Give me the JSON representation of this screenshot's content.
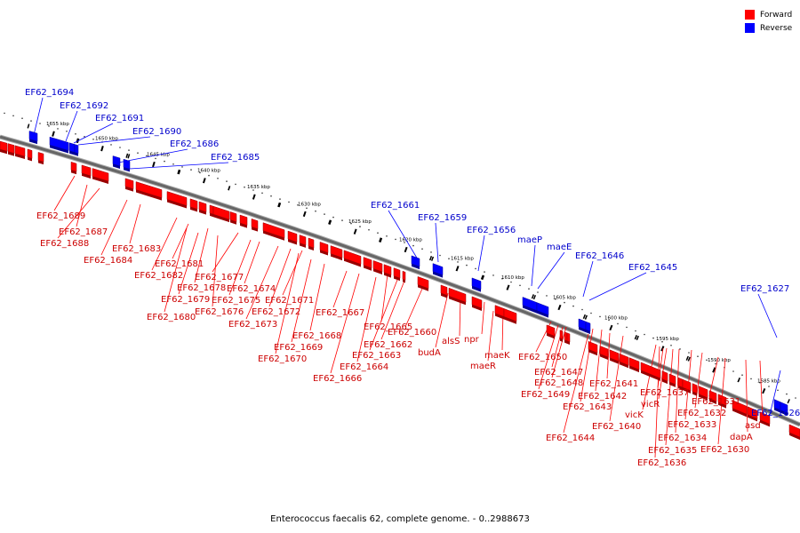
{
  "caption": "Enterococcus faecalis 62, complete genome. - 0..2988673",
  "legend": [
    {
      "label": "Forward",
      "color": "#ff0000"
    },
    {
      "label": "Reverse",
      "color": "#0000ff"
    }
  ],
  "colors": {
    "forward": "#ff0000",
    "reverse": "#0000ff",
    "forward_label": "#cc0000",
    "reverse_label": "#0000cc",
    "backbone": "#666666"
  },
  "scale_ticks": [
    "1655 kbp",
    "1650 kbp",
    "1645 kbp",
    "1640 kbp",
    "1635 kbp",
    "1630 kbp",
    "1625 kbp",
    "1620 kbp",
    "1615 kbp",
    "1610 kbp",
    "1605 kbp",
    "1600 kbp",
    "1595 kbp",
    "1590 kbp",
    "1585 kbp"
  ],
  "reverse_genes": [
    "EF62_1694",
    "EF62_1692",
    "EF62_1691",
    "EF62_1690",
    "EF62_1686",
    "EF62_1685",
    "EF62_1661",
    "EF62_1659",
    "EF62_1656",
    "maeP",
    "maeE",
    "EF62_1646",
    "EF62_1645",
    "EF62_1627",
    "EF62_1626"
  ],
  "forward_genes": [
    "EF62_1689",
    "EF62_1687",
    "EF62_1688",
    "EF62_1683",
    "EF62_1684",
    "EF62_1681",
    "EF62_1682",
    "EF62_1677",
    "EF62_1678",
    "EF62_1674",
    "EF62_1679",
    "EF62_1675",
    "EF62_1676",
    "EF62_1671",
    "EF62_1680",
    "EF62_1672",
    "EF62_1673",
    "EF62_1667",
    "EF62_1665",
    "EF62_1668",
    "EF62_1660",
    "EF62_1662",
    "EF62_1669",
    "alsS",
    "npr",
    "EF62_1663",
    "budA",
    "EF62_1670",
    "EF62_1664",
    "maeK",
    "maeR",
    "EF62_1666",
    "EF62_1650",
    "EF62_1647",
    "EF62_1648",
    "EF62_1649",
    "EF62_1641",
    "EF62_1642",
    "EF62_1643",
    "EF62_1637",
    "vicR",
    "EF62_1631",
    "vicK",
    "EF62_1632",
    "EF62_1640",
    "EF62_1633",
    "EF62_1644",
    "EF62_1634",
    "dapA",
    "asd",
    "EF62_1635",
    "EF62_1630",
    "EF62_1636"
  ]
}
